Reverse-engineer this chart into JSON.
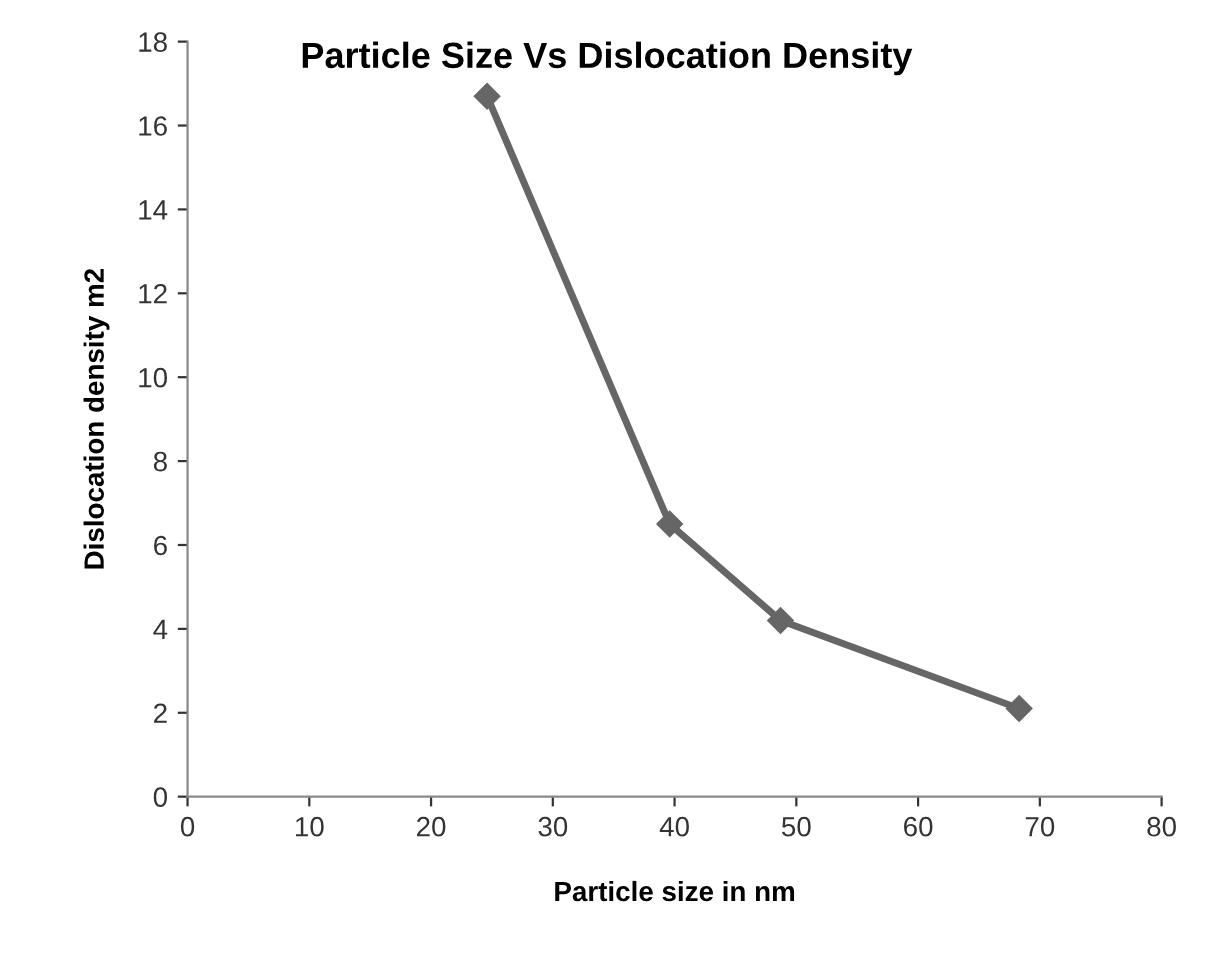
{
  "chart_data": {
    "type": "line",
    "title": "Particle Size Vs Dislocation Density",
    "xlabel": "Particle size in nm",
    "ylabel": "Dislocation density m2",
    "x": [
      24.6,
      39.6,
      48.7,
      68.3
    ],
    "series": [
      {
        "color": "#666666",
        "values": [
          16.7,
          6.5,
          4.2,
          2.1
        ]
      }
    ],
    "xlim": [
      0,
      80
    ],
    "xticks": [
      0,
      10,
      20,
      30,
      40,
      50,
      60,
      70,
      80
    ],
    "ylim": [
      0,
      18
    ],
    "yticks": [
      0,
      2,
      4,
      6,
      8,
      10,
      12,
      14,
      16,
      18
    ],
    "marker": "diamond",
    "line_style": "solid",
    "grid": false,
    "legend": false
  }
}
